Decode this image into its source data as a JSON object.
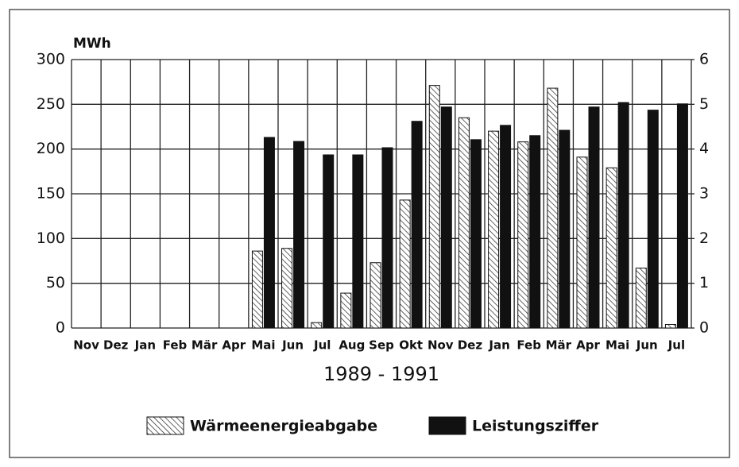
{
  "chart_data": {
    "type": "bar",
    "y_unit": "MWh",
    "xlabel": "1989 - 1991",
    "categories": [
      "Nov",
      "Dez",
      "Jan",
      "Feb",
      "Mär",
      "Apr",
      "Mai",
      "Jun",
      "Jul",
      "Aug",
      "Sep",
      "Okt",
      "Nov",
      "Dez",
      "Jan",
      "Feb",
      "Mär",
      "Apr",
      "Mai",
      "Jun",
      "Jul"
    ],
    "series": [
      {
        "name": "Wärmeenergieabgabe",
        "color": "#111111",
        "pattern": "hatch",
        "axis": "y",
        "values": [
          null,
          null,
          null,
          null,
          null,
          null,
          86,
          89,
          6,
          39,
          73,
          143,
          271,
          235,
          220,
          208,
          268,
          191,
          179,
          67,
          4
        ]
      },
      {
        "name": "Leistungsziffer",
        "color": "#111111",
        "pattern": "solid",
        "axis": "y2",
        "values": [
          null,
          null,
          null,
          null,
          null,
          null,
          4.26,
          4.17,
          3.87,
          3.87,
          4.03,
          4.62,
          4.94,
          4.21,
          4.53,
          4.3,
          4.42,
          4.94,
          5.04,
          4.87,
          5.01
        ]
      }
    ],
    "ylim": [
      0,
      300
    ],
    "yticks": [
      0,
      50,
      100,
      150,
      200,
      250,
      300
    ],
    "y2lim": [
      0,
      6
    ],
    "y2ticks": [
      0,
      1,
      2,
      3,
      4,
      5,
      6
    ],
    "grid": true
  }
}
